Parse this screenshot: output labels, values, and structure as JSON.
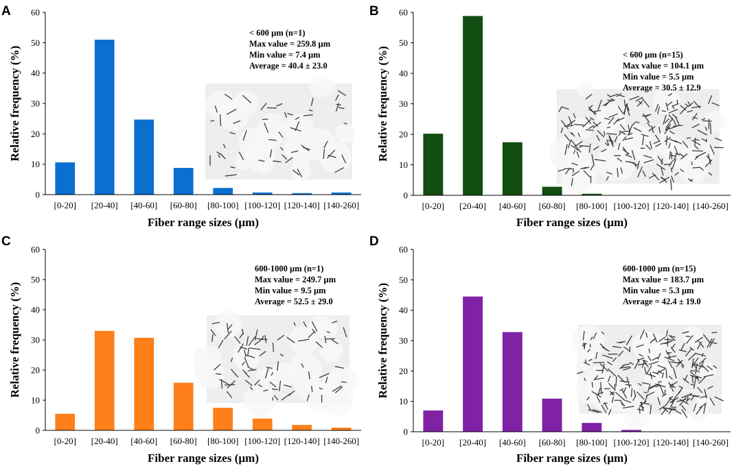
{
  "chart_data": [
    {
      "type": "bar",
      "panel": "A",
      "color": "#0b6fd0",
      "categories": [
        "[0-20]",
        "[20-40]",
        "[40-60]",
        "[60-80]",
        "[80-100]",
        "[100-120]",
        "[120-140]",
        "[140-260]"
      ],
      "values": [
        10.6,
        51.0,
        24.7,
        8.8,
        2.2,
        0.7,
        0.5,
        0.7
      ],
      "xlabel": "Fiber range sizes (µm)",
      "ylabel": "Relative frequency (%)",
      "ylim": [
        0,
        60
      ],
      "yticks": [
        0,
        10,
        20,
        30,
        40,
        50,
        60
      ],
      "annotation": [
        "< 600 µm  (n=1)",
        "Max value = 259.8 µm",
        "Min value = 7.4 µm",
        "Average = 40.4 ± 23.0"
      ]
    },
    {
      "type": "bar",
      "panel": "B",
      "color": "#124d12",
      "categories": [
        "[0-20]",
        "[20-40]",
        "[40-60]",
        "[60-80]",
        "[80-100]",
        "[100-120]",
        "[120-140]",
        "[140-260]"
      ],
      "values": [
        20.2,
        58.8,
        17.4,
        2.8,
        0.5,
        0,
        0,
        0
      ],
      "xlabel": "Fiber range sizes (µm)",
      "ylabel": "Relative frequency (%)",
      "ylim": [
        0,
        60
      ],
      "yticks": [
        0,
        10,
        20,
        30,
        40,
        50,
        60
      ],
      "annotation": [
        "< 600 µm  (n=15)",
        "Max value = 104.1 µm",
        "Min  value = 5.5 µm",
        "Average = 30.5 ± 12.9"
      ]
    },
    {
      "type": "bar",
      "panel": "C",
      "color": "#ff7f1a",
      "categories": [
        "[0-20]",
        "[20-40]",
        "[40-60]",
        "[60-80]",
        "[80-100]",
        "[100-120]",
        "[120-140]",
        "[140-260]"
      ],
      "values": [
        5.5,
        33.0,
        30.7,
        15.8,
        7.5,
        3.9,
        1.8,
        0.9
      ],
      "xlabel": "Fiber range sizes (µm)",
      "ylabel": "Relative frequency (%)",
      "ylim": [
        0,
        60
      ],
      "yticks": [
        0,
        10,
        20,
        30,
        40,
        50,
        60
      ],
      "annotation": [
        "600-1000 µm  (n=1)",
        "Max value = 249.7 µm",
        "Min  value = 9.5 µm",
        "Average = 52.5 ± 29.0"
      ]
    },
    {
      "type": "bar",
      "panel": "D",
      "color": "#7f22a6",
      "categories": [
        "[0-20]",
        "[20-40]",
        "[40-60]",
        "[60-80]",
        "[80-100]",
        "[100-120]",
        "[120-140]",
        "[140-260]"
      ],
      "values": [
        7.0,
        44.5,
        32.8,
        10.9,
        2.9,
        0.6,
        0,
        0
      ],
      "xlabel": "Fiber range sizes (µm)",
      "ylabel": "Relative frequency (%)",
      "ylim": [
        0,
        60
      ],
      "yticks": [
        0,
        10,
        20,
        30,
        40,
        50,
        60
      ],
      "annotation": [
        "600-1000 µm  (n=15)",
        "Max value = 183.7 µm",
        "Min  value = 5.3 µm",
        "Average = 42.4 ± 19.0"
      ]
    }
  ]
}
